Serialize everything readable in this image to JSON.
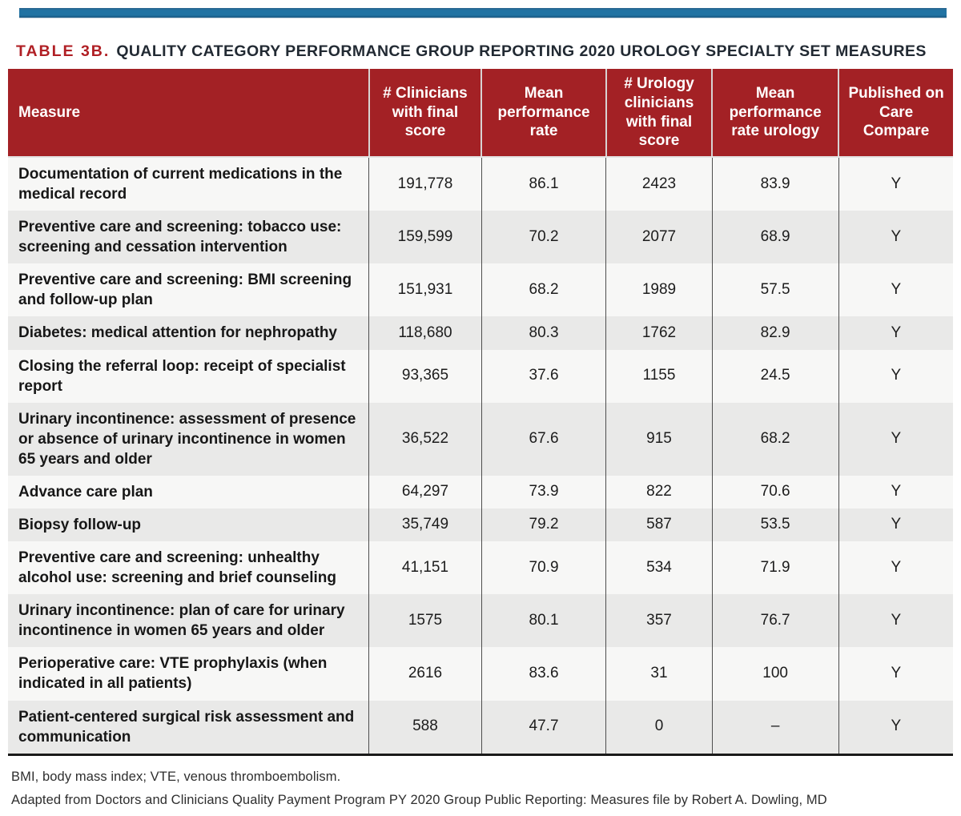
{
  "title": {
    "label": "TABLE 3B.",
    "text": "QUALITY CATEGORY PERFORMANCE GROUP REPORTING 2020 UROLOGY SPECIALTY SET MEASURES"
  },
  "table": {
    "columns": [
      "Measure",
      "# Clinicians with final score",
      "Mean performance rate",
      "# Urology clinicians with final score",
      "Mean performance rate urology",
      "Published on Care Compare"
    ],
    "rows": [
      [
        "Documentation of current medications in the medical record",
        "191,778",
        "86.1",
        "2423",
        "83.9",
        "Y"
      ],
      [
        "Preventive care and screening: tobacco use: screening and cessation intervention",
        "159,599",
        "70.2",
        "2077",
        "68.9",
        "Y"
      ],
      [
        "Preventive care and screening: BMI screening and follow-up plan",
        "151,931",
        "68.2",
        "1989",
        "57.5",
        "Y"
      ],
      [
        "Diabetes: medical attention for nephropathy",
        "118,680",
        "80.3",
        "1762",
        "82.9",
        "Y"
      ],
      [
        "Closing the referral loop: receipt of specialist report",
        "93,365",
        "37.6",
        "1155",
        "24.5",
        "Y"
      ],
      [
        "Urinary incontinence: assessment of presence or absence of urinary incontinence in women 65 years and older",
        "36,522",
        "67.6",
        "915",
        "68.2",
        "Y"
      ],
      [
        "Advance care plan",
        "64,297",
        "73.9",
        "822",
        "70.6",
        "Y"
      ],
      [
        "Biopsy follow-up",
        "35,749",
        "79.2",
        "587",
        "53.5",
        "Y"
      ],
      [
        "Preventive care and screening: unhealthy alcohol use: screening and brief counseling",
        "41,151",
        "70.9",
        "534",
        "71.9",
        "Y"
      ],
      [
        "Urinary incontinence: plan of care for urinary incontinence in women 65 years and older",
        "1575",
        "80.1",
        "357",
        "76.7",
        "Y"
      ],
      [
        "Perioperative care: VTE prophylaxis (when indicated in all patients)",
        "2616",
        "83.6",
        "31",
        "100",
        "Y"
      ],
      [
        "Patient-centered surgical risk assessment and communication",
        "588",
        "47.7",
        "0",
        "–",
        "Y"
      ]
    ]
  },
  "footnotes": {
    "abbreviations": "BMI, body mass index; VTE, venous thromboembolism.",
    "source": "Adapted from Doctors and Clinicians Quality Payment Program PY 2020 Group Public Reporting: Measures file by Robert A. Dowling, MD"
  },
  "colors": {
    "top_bar": "#2173a3",
    "header_bg": "#a32125",
    "title_accent": "#b01f24",
    "row_light": "#f7f7f6",
    "row_shaded": "#e9e9e8",
    "table_bottom_border": "#1a1a1a"
  }
}
